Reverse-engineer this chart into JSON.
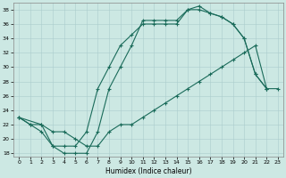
{
  "background_color": "#cce8e3",
  "grid_color": "#aacccc",
  "line_color": "#1a6b5a",
  "xlabel": "Humidex (Indice chaleur)",
  "xlim_min": -0.5,
  "xlim_max": 23.5,
  "ylim_min": 17.5,
  "ylim_max": 39.0,
  "xticks": [
    0,
    1,
    2,
    3,
    4,
    5,
    6,
    7,
    8,
    9,
    10,
    11,
    12,
    13,
    14,
    15,
    16,
    17,
    18,
    19,
    20,
    21,
    22,
    23
  ],
  "yticks": [
    18,
    20,
    22,
    24,
    26,
    28,
    30,
    32,
    34,
    36,
    38
  ],
  "curve1_x": [
    0,
    1,
    2,
    3,
    4,
    5,
    6,
    7,
    8,
    9,
    10,
    11,
    12,
    13,
    14,
    15,
    16,
    17,
    18,
    19,
    20,
    21,
    22
  ],
  "curve1_y": [
    23,
    22,
    21,
    19,
    18,
    18,
    18,
    21,
    27,
    30,
    33,
    36.5,
    36.5,
    36.5,
    36.5,
    38,
    38,
    37.5,
    37,
    36,
    34,
    29,
    27
  ],
  "curve2_x": [
    0,
    2,
    3,
    4,
    5,
    6,
    7,
    8,
    9,
    10,
    11,
    12,
    13,
    14,
    15,
    16,
    17,
    18,
    19,
    20,
    21,
    22,
    23
  ],
  "curve2_y": [
    23,
    22,
    21,
    21,
    20,
    19,
    19,
    21,
    22,
    22,
    23,
    24,
    25,
    26,
    27,
    28,
    29,
    30,
    31,
    32,
    33,
    27,
    27
  ],
  "curve3_x": [
    0,
    1,
    2,
    3,
    4,
    5,
    6,
    7,
    8,
    9,
    10,
    11,
    12,
    13,
    14,
    15,
    16,
    17,
    18,
    19,
    20,
    21,
    22
  ],
  "curve3_y": [
    23,
    22,
    22,
    19,
    19,
    19,
    21,
    27,
    30,
    33,
    34.5,
    36,
    36,
    36,
    36,
    38,
    38.5,
    37.5,
    37,
    36,
    34,
    29,
    27
  ]
}
